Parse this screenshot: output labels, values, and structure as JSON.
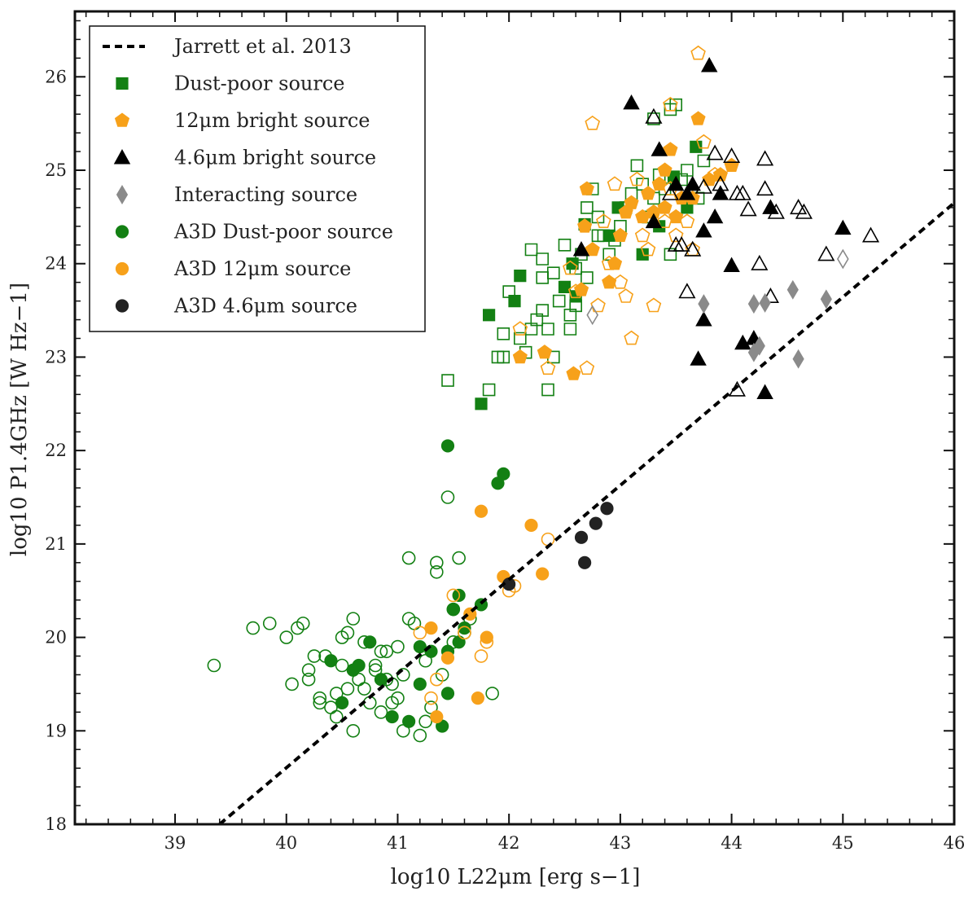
{
  "chart_data": {
    "type": "scatter",
    "title": "",
    "xlabel": "log10 L22μm [erg s−1]",
    "ylabel": "log10 P1.4GHz [W Hz−1]",
    "xlim": [
      38.1,
      46.0
    ],
    "ylim": [
      18.0,
      26.7
    ],
    "x_ticks": [
      "39",
      "40",
      "41",
      "42",
      "43",
      "44",
      "45",
      "46"
    ],
    "y_ticks": [
      "18",
      "19",
      "20",
      "21",
      "22",
      "23",
      "24",
      "25",
      "26"
    ],
    "grid": false,
    "legend_position": "top-left",
    "legend": [
      {
        "label": "Jarrett et al. 2013",
        "symbol": "dashed-line",
        "color": "#000000"
      },
      {
        "label": "Dust-poor source",
        "symbol": "square",
        "color": "#138013"
      },
      {
        "label": "12μm bright source",
        "symbol": "pentagon",
        "color": "#f7a11a"
      },
      {
        "label": "4.6μm bright source",
        "symbol": "triangle",
        "color": "#000000"
      },
      {
        "label": "Interacting source",
        "symbol": "diamond",
        "color": "#8a8a8a"
      },
      {
        "label": "A3D Dust-poor source",
        "symbol": "circle",
        "color": "#138013"
      },
      {
        "label": "A3D 12μm source",
        "symbol": "circle",
        "color": "#f7a11a"
      },
      {
        "label": "A3D 4.6μm source",
        "symbol": "circle",
        "color": "#222222"
      }
    ],
    "line": {
      "name": "Jarrett et al. 2013",
      "x": [
        39.4,
        46.0
      ],
      "y": [
        18.0,
        24.65
      ]
    },
    "series": [
      {
        "name": "Dust-poor source",
        "marker": "square",
        "filled": true,
        "color": "#138013",
        "x": [
          41.75,
          41.82,
          42.05,
          42.1,
          42.5,
          42.6,
          42.68,
          43.35,
          43.48,
          43.68,
          42.57,
          42.9,
          42.98,
          43.6,
          43.2
        ],
        "y": [
          22.5,
          23.45,
          23.6,
          23.87,
          23.75,
          23.65,
          24.42,
          24.4,
          24.93,
          25.25,
          24.0,
          24.3,
          24.6,
          24.6,
          24.1
        ]
      },
      {
        "name": "Dust-poor source (open)",
        "marker": "square",
        "filled": false,
        "color": "#138013",
        "x": [
          41.45,
          41.82,
          41.9,
          41.95,
          42.0,
          42.1,
          42.15,
          42.25,
          42.3,
          42.3,
          42.35,
          42.4,
          42.45,
          42.5,
          42.55,
          42.6,
          42.65,
          42.7,
          42.8,
          42.85,
          42.9,
          42.95,
          43.0,
          43.05,
          43.1,
          43.15,
          43.2,
          43.25,
          43.3,
          43.35,
          43.4,
          43.45,
          43.5,
          43.55,
          43.6,
          43.7,
          43.75,
          43.3,
          43.45,
          42.35,
          42.55,
          42.4,
          42.2,
          41.95,
          42.7,
          42.75,
          42.8,
          42.6,
          42.2,
          42.3
        ],
        "y": [
          22.75,
          22.65,
          23.0,
          23.25,
          23.7,
          23.2,
          23.05,
          23.4,
          23.5,
          23.85,
          22.65,
          23.9,
          23.6,
          24.2,
          23.3,
          23.95,
          24.1,
          23.85,
          24.5,
          24.3,
          24.1,
          24.25,
          24.4,
          24.6,
          24.75,
          25.05,
          24.85,
          24.5,
          24.7,
          24.95,
          24.8,
          24.1,
          25.7,
          24.9,
          25.0,
          24.7,
          25.1,
          25.55,
          25.65,
          23.3,
          23.45,
          23.0,
          23.3,
          23.0,
          24.6,
          24.8,
          24.3,
          23.55,
          24.15,
          24.05
        ]
      },
      {
        "name": "12μm bright source",
        "marker": "pentagon",
        "filled": true,
        "color": "#f7a11a",
        "x": [
          42.1,
          42.32,
          42.58,
          42.65,
          42.7,
          42.9,
          42.95,
          43.0,
          43.05,
          43.1,
          43.2,
          43.25,
          43.3,
          43.35,
          43.4,
          43.45,
          43.55,
          43.65,
          43.7,
          43.5,
          42.75,
          42.68,
          43.8,
          44.0,
          43.9,
          43.4
        ],
        "y": [
          23.0,
          23.05,
          22.82,
          23.72,
          24.8,
          23.8,
          24.0,
          24.3,
          24.55,
          24.65,
          24.5,
          24.75,
          24.55,
          24.85,
          25.0,
          25.22,
          24.7,
          24.7,
          25.55,
          24.5,
          24.15,
          24.4,
          24.9,
          25.05,
          24.95,
          24.6
        ]
      },
      {
        "name": "12μm bright source (open)",
        "marker": "pentagon",
        "filled": false,
        "color": "#f7a11a",
        "x": [
          42.1,
          42.35,
          42.55,
          42.7,
          42.8,
          42.9,
          42.95,
          43.0,
          43.05,
          43.1,
          43.15,
          43.2,
          43.25,
          43.3,
          43.4,
          43.45,
          43.5,
          43.6,
          43.7,
          43.75,
          43.85,
          43.65,
          43.45,
          42.85,
          42.75,
          42.6
        ],
        "y": [
          23.3,
          22.88,
          23.95,
          22.88,
          23.55,
          24.0,
          24.85,
          23.8,
          23.65,
          23.2,
          24.9,
          24.3,
          24.15,
          23.55,
          24.45,
          24.8,
          24.3,
          24.45,
          26.25,
          25.3,
          24.95,
          24.15,
          25.7,
          24.45,
          25.5,
          23.7
        ]
      },
      {
        "name": "4.6μm bright source",
        "marker": "triangle",
        "filled": true,
        "color": "#000000",
        "x": [
          42.65,
          43.1,
          43.35,
          43.5,
          43.7,
          43.75,
          43.8,
          43.85,
          43.9,
          44.0,
          44.1,
          44.2,
          44.3,
          44.35,
          45.0,
          43.75,
          43.65,
          43.3,
          43.6
        ],
        "y": [
          24.15,
          25.72,
          25.22,
          24.85,
          22.98,
          24.35,
          26.12,
          24.5,
          24.75,
          23.98,
          23.15,
          23.2,
          22.62,
          24.6,
          24.38,
          23.4,
          24.85,
          24.45,
          24.75
        ]
      },
      {
        "name": "4.6μm bright source (open)",
        "marker": "triangle",
        "filled": false,
        "color": "#000000",
        "x": [
          43.3,
          43.5,
          43.6,
          43.65,
          43.75,
          43.85,
          43.9,
          44.0,
          44.05,
          44.1,
          44.15,
          44.25,
          44.3,
          44.35,
          44.4,
          44.6,
          44.65,
          44.85,
          45.25,
          44.05,
          44.3,
          43.55,
          43.45
        ],
        "y": [
          25.57,
          24.2,
          23.7,
          24.15,
          24.82,
          25.18,
          24.85,
          25.15,
          22.65,
          24.75,
          24.58,
          24.0,
          25.12,
          23.65,
          24.55,
          24.6,
          24.55,
          24.1,
          24.3,
          24.75,
          24.8,
          24.2,
          24.75
        ]
      },
      {
        "name": "Interacting source",
        "marker": "diamond",
        "filled": true,
        "color": "#8a8a8a",
        "x": [
          43.75,
          44.2,
          44.25,
          44.3,
          44.55,
          44.6,
          44.85,
          44.2
        ],
        "y": [
          23.57,
          23.05,
          23.12,
          23.58,
          23.72,
          22.98,
          23.62,
          23.57
        ]
      },
      {
        "name": "Interacting source (open)",
        "marker": "diamond",
        "filled": false,
        "color": "#8a8a8a",
        "x": [
          42.75,
          45.0
        ],
        "y": [
          23.45,
          24.05
        ]
      },
      {
        "name": "A3D Dust-poor source",
        "marker": "circle",
        "filled": true,
        "color": "#138013",
        "x": [
          41.45,
          41.9,
          41.95,
          40.4,
          40.6,
          40.65,
          40.85,
          40.95,
          41.1,
          41.2,
          41.3,
          41.45,
          41.5,
          41.55,
          41.6,
          41.45,
          41.4,
          41.2,
          40.5,
          40.75,
          41.55,
          41.75
        ],
        "y": [
          22.05,
          21.65,
          21.75,
          19.75,
          19.65,
          19.7,
          19.55,
          19.15,
          19.1,
          19.5,
          19.85,
          19.85,
          20.3,
          20.45,
          20.1,
          19.4,
          19.05,
          19.9,
          19.3,
          19.95,
          19.95,
          20.35
        ]
      },
      {
        "name": "A3D Dust-poor source (open)",
        "marker": "circle",
        "filled": false,
        "color": "#138013",
        "x": [
          39.35,
          39.7,
          39.85,
          40.0,
          40.05,
          40.1,
          40.15,
          40.2,
          40.3,
          40.35,
          40.4,
          40.45,
          40.5,
          40.55,
          40.6,
          40.65,
          40.7,
          40.75,
          40.8,
          40.85,
          40.9,
          40.95,
          41.0,
          41.05,
          41.1,
          41.15,
          41.2,
          41.25,
          41.3,
          41.35,
          41.4,
          41.45,
          41.5,
          41.55,
          41.6,
          41.65,
          41.1,
          41.35,
          41.5,
          41.85,
          40.3,
          40.5,
          40.7,
          40.9,
          41.05,
          40.2,
          40.45,
          40.8,
          41.25,
          40.6,
          40.95,
          40.25,
          40.55,
          40.85,
          41.0
        ],
        "y": [
          19.7,
          20.1,
          20.15,
          20.0,
          19.5,
          20.1,
          20.15,
          19.65,
          19.35,
          19.8,
          19.25,
          19.4,
          20.0,
          20.05,
          20.2,
          19.55,
          19.95,
          19.3,
          19.7,
          19.85,
          19.55,
          19.5,
          19.35,
          19.6,
          20.85,
          20.15,
          18.95,
          19.1,
          19.25,
          20.8,
          19.6,
          21.5,
          20.3,
          20.85,
          20.05,
          20.2,
          20.2,
          20.7,
          19.95,
          19.4,
          19.3,
          19.7,
          19.45,
          19.85,
          19.0,
          19.55,
          19.15,
          19.65,
          19.75,
          19.0,
          19.3,
          19.8,
          19.45,
          19.2,
          19.9
        ]
      },
      {
        "name": "A3D 12μm source",
        "marker": "circle",
        "filled": true,
        "color": "#f7a11a",
        "x": [
          41.75,
          41.95,
          42.2,
          42.3,
          41.8,
          41.72,
          41.35,
          41.3,
          41.45,
          41.65
        ],
        "y": [
          21.35,
          20.65,
          21.2,
          20.68,
          20.0,
          19.35,
          19.15,
          20.1,
          19.78,
          20.25
        ]
      },
      {
        "name": "A3D 12μm source (open)",
        "marker": "circle",
        "filled": false,
        "color": "#f7a11a",
        "x": [
          42.35,
          41.8,
          42.0,
          42.05,
          41.5,
          41.3,
          41.2,
          41.6,
          41.75,
          41.35
        ],
        "y": [
          21.05,
          19.95,
          20.5,
          20.55,
          20.45,
          19.35,
          20.05,
          20.05,
          19.8,
          19.55
        ]
      },
      {
        "name": "A3D 4.6μm source",
        "marker": "circle",
        "filled": true,
        "color": "#222222",
        "x": [
          42.0,
          42.65,
          42.68,
          42.78,
          42.88
        ],
        "y": [
          20.57,
          21.07,
          20.8,
          21.22,
          21.38
        ]
      }
    ]
  }
}
